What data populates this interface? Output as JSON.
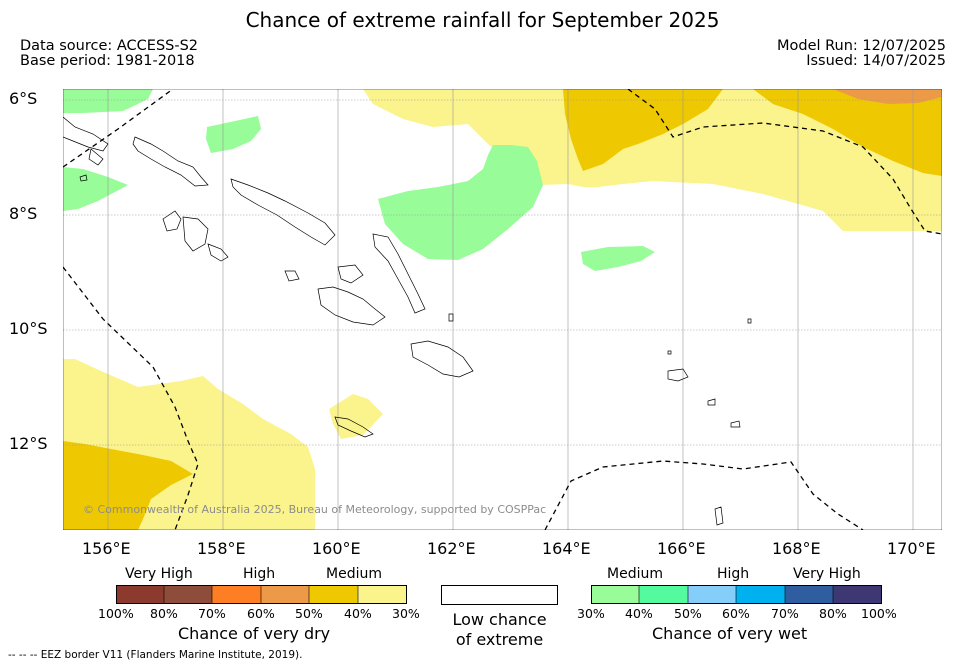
{
  "title": "Chance of extreme rainfall for September 2025",
  "header": {
    "data_source": "Data source: ACCESS-S2",
    "base_period": "Base period: 1981-2018",
    "model_run": "Model Run: 12/07/2025",
    "issued": "Issued: 14/07/2025"
  },
  "map": {
    "lat_labels": [
      "6°S",
      "8°S",
      "10°S",
      "12°S"
    ],
    "lon_labels": [
      "156°E",
      "158°E",
      "160°E",
      "162°E",
      "164°E",
      "166°E",
      "168°E",
      "170°E"
    ],
    "copyright": "© Commonwealth of Australia 2025, Bureau of Meteorology, supported by COSPPac",
    "colors": {
      "dry_medium_light": "#fbf38b",
      "dry_medium": "#eec800",
      "dry_high": "#ec9a47",
      "wet_medium": "#98fc98"
    }
  },
  "legend": {
    "dry": {
      "categories": [
        "Very High",
        "High",
        "Medium"
      ],
      "ticks": [
        "100%",
        "80%",
        "70%",
        "60%",
        "50%",
        "40%",
        "30%"
      ],
      "colors": [
        "#8d3a2e",
        "#8e4d3a",
        "#fe7f23",
        "#ed9a48",
        "#eec800",
        "#fbf38b"
      ],
      "caption": "Chance of very dry"
    },
    "low": {
      "caption_line1": "Low chance",
      "caption_line2": "of extreme"
    },
    "wet": {
      "categories": [
        "Medium",
        "High",
        "Very High"
      ],
      "ticks": [
        "30%",
        "40%",
        "50%",
        "60%",
        "70%",
        "80%",
        "100%"
      ],
      "colors": [
        "#98fc98",
        "#53fb9e",
        "#86cefa",
        "#00b0ef",
        "#2e5ea0",
        "#3d3874"
      ],
      "caption": "Chance of very wet"
    }
  },
  "footer": "-- -- -- EEZ border V11 (Flanders Marine Institute, 2019)."
}
